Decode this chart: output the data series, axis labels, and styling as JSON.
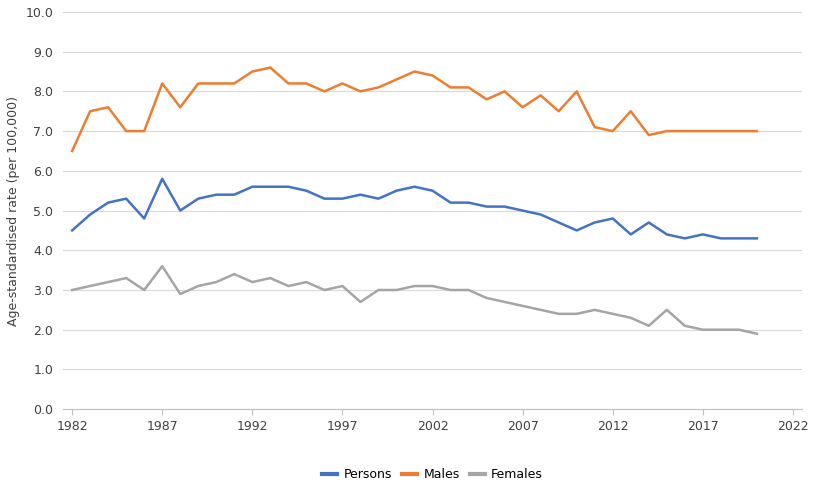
{
  "years": [
    1982,
    1983,
    1984,
    1985,
    1986,
    1987,
    1988,
    1989,
    1990,
    1991,
    1992,
    1993,
    1994,
    1995,
    1996,
    1997,
    1998,
    1999,
    2000,
    2001,
    2002,
    2003,
    2004,
    2005,
    2006,
    2007,
    2008,
    2009,
    2010,
    2011,
    2012,
    2013,
    2014,
    2015,
    2016,
    2017,
    2018,
    2019,
    2020
  ],
  "persons": [
    4.5,
    4.9,
    5.2,
    5.3,
    4.8,
    5.8,
    5.0,
    5.3,
    5.4,
    5.4,
    5.6,
    5.6,
    5.6,
    5.5,
    5.3,
    5.3,
    5.4,
    5.3,
    5.5,
    5.6,
    5.5,
    5.2,
    5.2,
    5.1,
    5.1,
    5.0,
    4.9,
    4.7,
    4.5,
    4.7,
    4.8,
    4.4,
    4.7,
    4.4,
    4.3,
    4.4,
    4.3,
    4.3,
    4.3
  ],
  "males": [
    6.5,
    7.5,
    7.6,
    7.0,
    7.0,
    8.2,
    7.6,
    8.2,
    8.2,
    8.2,
    8.5,
    8.6,
    8.2,
    8.2,
    8.0,
    8.2,
    8.0,
    8.1,
    8.3,
    8.5,
    8.4,
    8.1,
    8.1,
    7.8,
    8.0,
    7.6,
    7.9,
    7.5,
    8.0,
    7.1,
    7.0,
    7.5,
    6.9,
    7.0,
    7.0,
    7.0,
    7.0,
    7.0,
    7.0
  ],
  "females": [
    3.0,
    3.1,
    3.2,
    3.3,
    3.0,
    3.6,
    2.9,
    3.1,
    3.2,
    3.4,
    3.2,
    3.3,
    3.1,
    3.2,
    3.0,
    3.1,
    2.7,
    3.0,
    3.0,
    3.1,
    3.1,
    3.0,
    3.0,
    2.8,
    2.7,
    2.6,
    2.5,
    2.4,
    2.4,
    2.5,
    2.4,
    2.3,
    2.1,
    2.5,
    2.1,
    2.0,
    2.0,
    2.0,
    1.9
  ],
  "persons_color": "#4472C4",
  "males_color": "#ED7D31",
  "females_color": "#A5A5A5",
  "ylabel": "Age-standardised rate (per 100,000)",
  "ylim": [
    0.0,
    10.0
  ],
  "yticks": [
    0.0,
    1.0,
    2.0,
    3.0,
    4.0,
    5.0,
    6.0,
    7.0,
    8.0,
    9.0,
    10.0
  ],
  "xticks": [
    1982,
    1987,
    1992,
    1997,
    2002,
    2007,
    2012,
    2017,
    2022
  ],
  "xlim": [
    1981.5,
    2022.5
  ],
  "legend_labels": [
    "Persons",
    "Males",
    "Females"
  ],
  "background_color": "#ffffff",
  "grid_color": "#d9d9d9",
  "linewidth": 1.8
}
